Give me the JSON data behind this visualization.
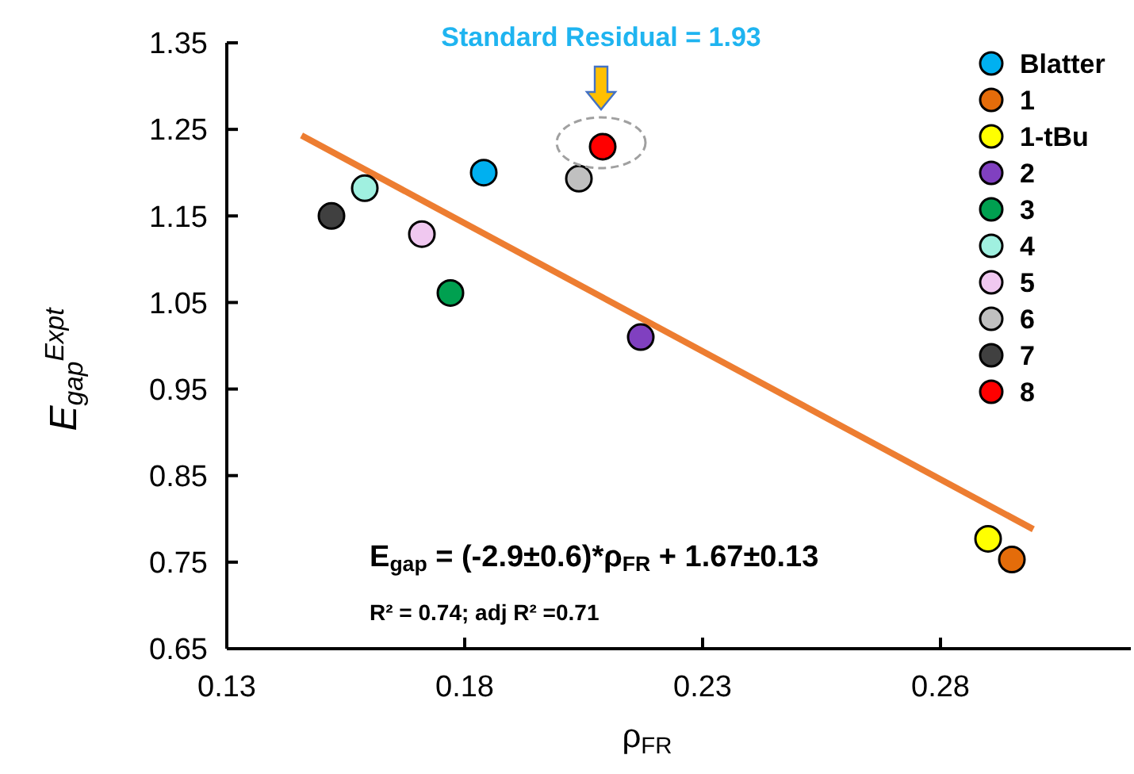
{
  "chart_data": {
    "type": "scatter",
    "xlabel": "ρ$_{FR}$",
    "ylabel": "E$_{gap}$$^{Expt}$",
    "xlim": [
      0.13,
      0.32
    ],
    "xticks": [
      0.13,
      0.18,
      0.23,
      0.28
    ],
    "ylim": [
      0.65,
      1.35
    ],
    "yticks": [
      0.65,
      0.75,
      0.85,
      0.95,
      1.05,
      1.15,
      1.25,
      1.35
    ],
    "grid": false,
    "legend": "top right",
    "marker": "circle",
    "series": [
      {
        "type": "line",
        "marker": "none",
        "color": "#ed7d31",
        "x": [
          0.1457,
          0.2995
        ],
        "values": [
          1.243,
          0.788
        ]
      },
      {
        "name": "Blatter",
        "color": "#00b0f0",
        "x": [
          0.184
        ],
        "values": [
          1.2
        ]
      },
      {
        "name": "1",
        "color": "#e46c0a",
        "x": [
          0.295
        ],
        "values": [
          0.753
        ]
      },
      {
        "name": "1-tBu",
        "color": "#ffff00",
        "x": [
          0.29
        ],
        "values": [
          0.777
        ]
      },
      {
        "name": "2",
        "color": "#8040c0",
        "x": [
          0.217
        ],
        "values": [
          1.01
        ]
      },
      {
        "name": "3",
        "color": "#00a050",
        "x": [
          0.177
        ],
        "values": [
          1.061
        ]
      },
      {
        "name": "4",
        "color": "#a0f0e0",
        "x": [
          0.159
        ],
        "values": [
          1.182
        ]
      },
      {
        "name": "5",
        "color": "#f0c8f0",
        "x": [
          0.171
        ],
        "values": [
          1.129
        ]
      },
      {
        "name": "6",
        "color": "#c0c0c0",
        "x": [
          0.204
        ],
        "values": [
          1.193
        ]
      },
      {
        "name": "7",
        "color": "#404040",
        "x": [
          0.152
        ],
        "values": [
          1.15
        ]
      },
      {
        "name": "8",
        "color": "#ff0000",
        "x": [
          0.209
        ],
        "values": [
          1.23
        ]
      }
    ],
    "annotations": [
      "Standard Residual = 1.93",
      "E$_{gap}$ = (-2.9±0.6)*ρ$_{FR}$ + 1.67±0.13",
      "R² = 0.74; adj R² =0.71"
    ]
  }
}
